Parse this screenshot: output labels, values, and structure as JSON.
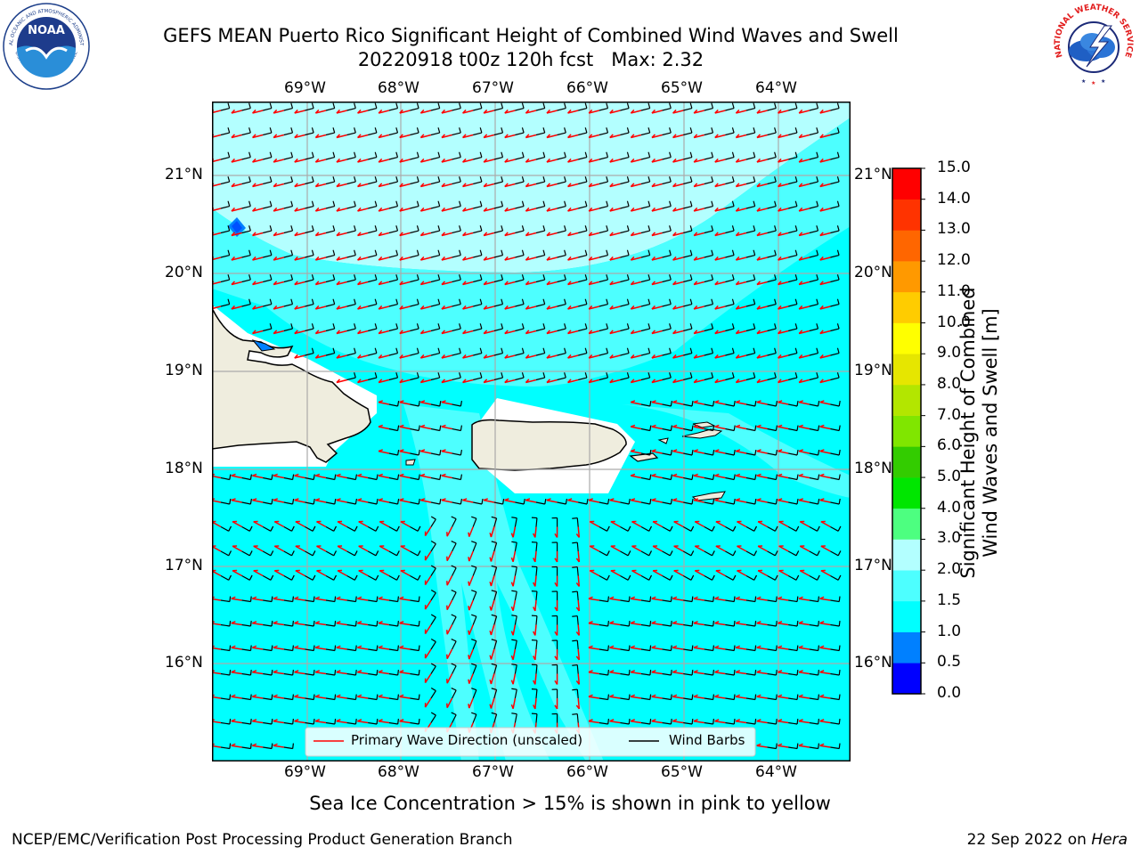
{
  "header": {
    "title_line1": "GEFS MEAN Puerto Rico Significant Height of Combined Wind Waves and Swell",
    "title_line2": "20220918 t00z 120h fcst   Max: 2.32"
  },
  "logos": {
    "noaa_text": "NOAA",
    "noaa_ring_top": "NATIONAL OCEANIC AND ATMOSPHERIC ADMINISTRATION",
    "noaa_ring_bottom": "U.S. DEPARTMENT OF COMMERCE",
    "nws_ring": "NATIONAL WEATHER SERVICE"
  },
  "map": {
    "lon_labels": [
      "69°W",
      "68°W",
      "67°W",
      "66°W",
      "65°W",
      "64°W"
    ],
    "lat_labels": [
      "21°N",
      "20°N",
      "19°N",
      "18°N",
      "17°N",
      "16°N"
    ],
    "legend": {
      "wave_label": "Primary Wave Direction (unscaled)",
      "barb_label": "Wind Barbs"
    },
    "colors": {
      "land": "#efedde",
      "sea_main": "#00ffff",
      "sea_light": "#b3ffff",
      "sea_mid": "#4dffff",
      "wave_arrow": "#ff0000",
      "barb": "#000000"
    }
  },
  "colorbar": {
    "label_line1": "Significant Height of Combined",
    "label_line2": "Wind Waves and Swell [m]",
    "ticks": [
      "0.0",
      "0.5",
      "1.0",
      "1.5",
      "2.0",
      "3.0",
      "4.0",
      "5.0",
      "6.0",
      "7.0",
      "8.0",
      "9.0",
      "10.0",
      "11.0",
      "12.0",
      "13.0",
      "14.0",
      "15.0"
    ],
    "colors": [
      "#0000ff",
      "#0080ff",
      "#00ffff",
      "#4dffff",
      "#b3ffff",
      "#4dff80",
      "#00e600",
      "#33cc00",
      "#80e600",
      "#b3e600",
      "#e6e600",
      "#ffff00",
      "#ffcc00",
      "#ff9900",
      "#ff6600",
      "#ff3300",
      "#ff0000"
    ]
  },
  "notes": {
    "sea_ice": "Sea Ice Concentration > 15% is shown in pink to yellow"
  },
  "footer": {
    "left": "NCEP/EMC/Verification Post Processing Product Generation Branch",
    "right_date": "22 Sep 2022 on",
    "right_machine": "Hera"
  }
}
